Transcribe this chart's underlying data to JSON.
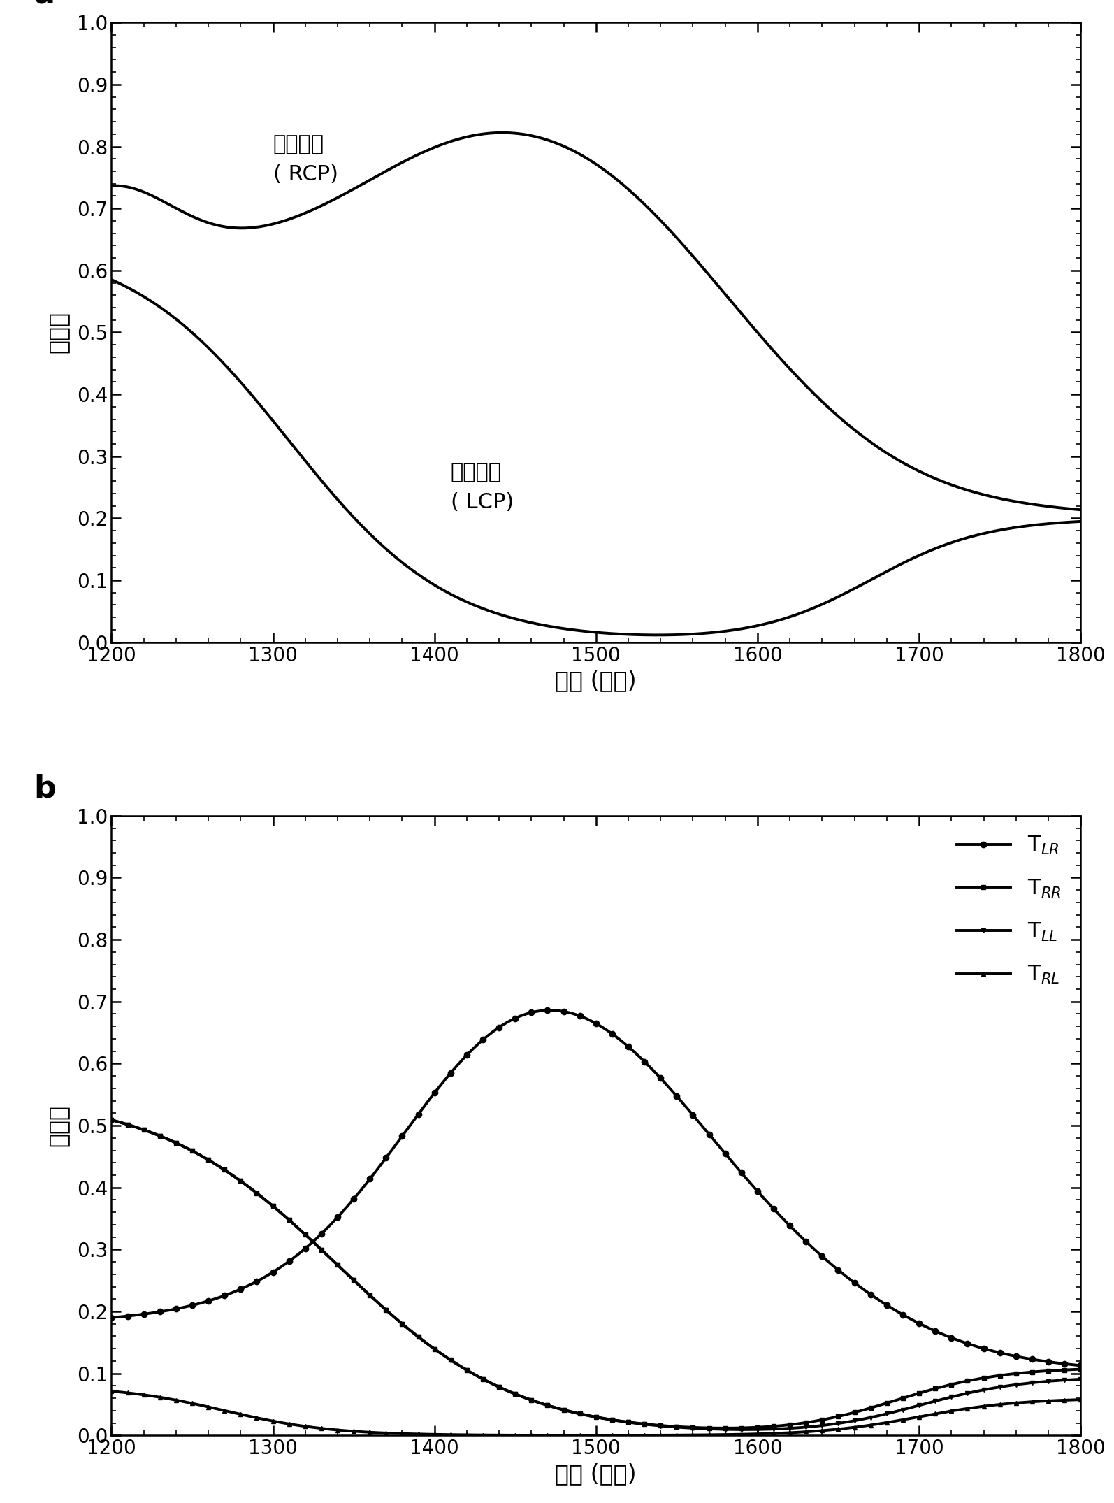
{
  "wavelength_min": 1200,
  "wavelength_max": 1800,
  "ylim": [
    0.0,
    1.0
  ],
  "yticks": [
    0.0,
    0.1,
    0.2,
    0.3,
    0.4,
    0.5,
    0.6,
    0.7,
    0.8,
    0.9,
    1.0
  ],
  "xticks": [
    1200,
    1300,
    1400,
    1500,
    1600,
    1700,
    1800
  ],
  "xlabel": "波长 (纳米)",
  "ylabel": "透射率",
  "panel_a_label": "a",
  "panel_b_label": "b",
  "rcp_label_line1": "右旋入射",
  "rcp_label_line2": "( RCP)",
  "lcp_label_line1": "左旋入射",
  "lcp_label_line2": "( LCP)",
  "line_color": "#000000",
  "background_color": "#ffffff",
  "tick_fontsize": 20,
  "label_fontsize": 24,
  "panel_label_fontsize": 32,
  "annotation_fontsize": 22,
  "legend_fontsize": 22,
  "line_width": 2.8,
  "marker_size": 6
}
